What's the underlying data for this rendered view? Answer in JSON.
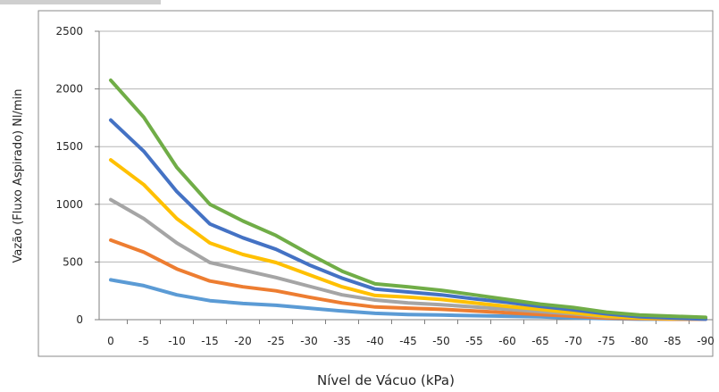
{
  "chart_data": {
    "type": "line",
    "title": "",
    "xlabel": "Nível de Vácuo (kPa)",
    "ylabel": "Vazão (Fluxo Aspirado) Nl/min",
    "categories": [
      "0",
      "-5",
      "-10",
      "-15",
      "-20",
      "-25",
      "-30",
      "-35",
      "-40",
      "-45",
      "-50",
      "-55",
      "-60",
      "-65",
      "-70",
      "-75",
      "-80",
      "-85",
      "-90"
    ],
    "ylim": [
      0,
      2500
    ],
    "yticks": [
      0,
      500,
      1000,
      1500,
      2000,
      2500
    ],
    "grid": "horizontal",
    "legend": "none",
    "series": [
      {
        "color": "#70AD47",
        "values": [
          2075,
          1755,
          1320,
          1000,
          855,
          730,
          570,
          420,
          310,
          285,
          255,
          215,
          175,
          135,
          105,
          65,
          40,
          30,
          20
        ]
      },
      {
        "color": "#4472C4",
        "values": [
          1730,
          1460,
          1110,
          830,
          710,
          610,
          475,
          360,
          265,
          240,
          215,
          180,
          150,
          115,
          85,
          50,
          25,
          15,
          5
        ]
      },
      {
        "color": "#FFC000",
        "values": [
          1385,
          1170,
          875,
          665,
          565,
          495,
          390,
          285,
          210,
          195,
          175,
          145,
          115,
          90,
          60,
          30,
          15,
          10,
          10
        ]
      },
      {
        "color": "#A5A5A5",
        "values": [
          1040,
          875,
          665,
          495,
          430,
          365,
          290,
          215,
          170,
          145,
          130,
          110,
          90,
          70,
          50,
          25,
          15,
          10,
          10
        ]
      },
      {
        "color": "#ED7D31",
        "values": [
          690,
          585,
          440,
          335,
          285,
          250,
          195,
          145,
          110,
          100,
          90,
          75,
          60,
          45,
          30,
          15,
          10,
          5,
          5
        ]
      },
      {
        "color": "#5B9BD5",
        "values": [
          345,
          295,
          215,
          165,
          140,
          125,
          100,
          75,
          55,
          45,
          40,
          35,
          30,
          25,
          15,
          10,
          5,
          5,
          5
        ]
      }
    ]
  }
}
